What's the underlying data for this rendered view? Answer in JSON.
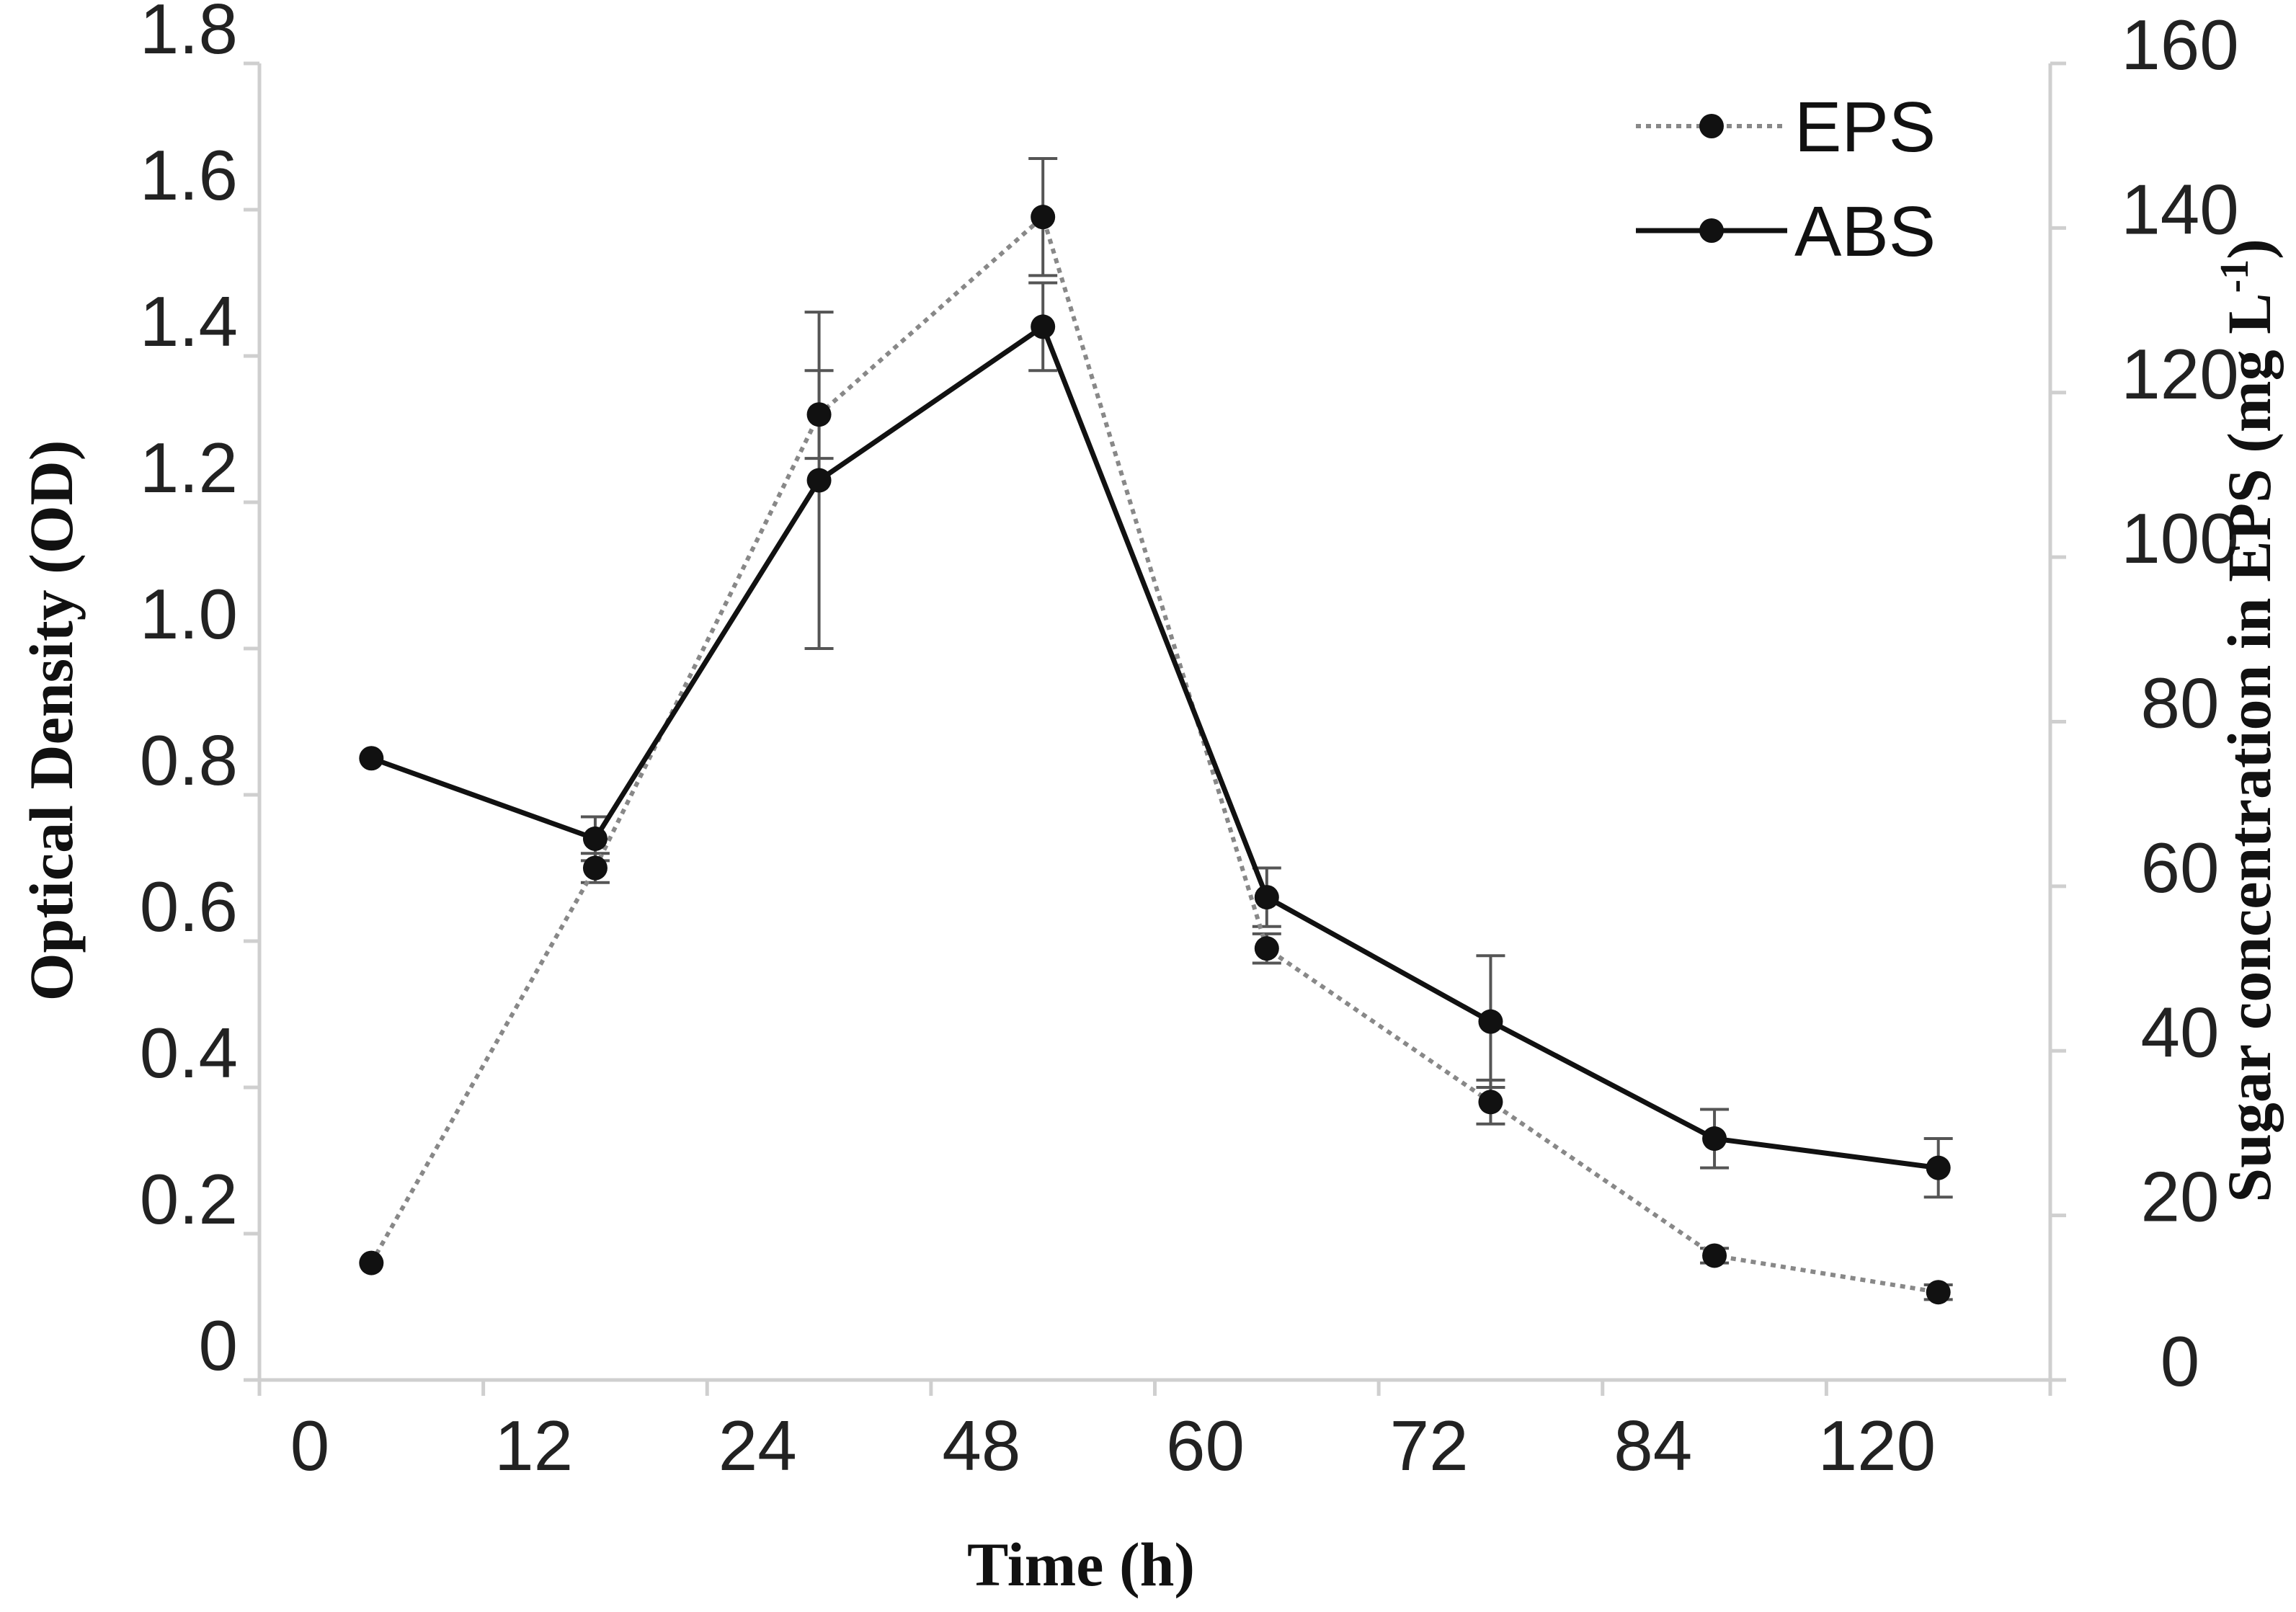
{
  "chart_data": {
    "type": "line",
    "categories": [
      "0",
      "12",
      "24",
      "48",
      "60",
      "72",
      "84",
      "120"
    ],
    "xlabel": "Time (h)",
    "ylabel_left": "Optical Density (OD)",
    "ylabel_right": "Sugar concentration in EPS (mg L-1)",
    "ylim_left": [
      0,
      1.8
    ],
    "ylim_right": [
      0,
      160
    ],
    "yticks_left": [
      "0",
      "0.2",
      "0.4",
      "0.6",
      "0.8",
      "1.0",
      "1.2",
      "1.4",
      "1.6",
      "1.8"
    ],
    "yticks_right": [
      "0",
      "20",
      "40",
      "60",
      "80",
      "100",
      "120",
      "140",
      "160"
    ],
    "legend_position": "top-right",
    "series": [
      {
        "name": "EPS",
        "style": "dotted",
        "x": [
          0.5,
          1.5,
          2.5,
          3.5,
          4.5,
          5.5,
          6.5,
          7.5
        ],
        "values": [
          0.16,
          0.7,
          1.32,
          1.59,
          0.59,
          0.38,
          0.17,
          0.12
        ],
        "errors": [
          0.0,
          0.02,
          0.06,
          0.08,
          0.02,
          0.03,
          0.01,
          0.01
        ]
      },
      {
        "name": "ABS",
        "style": "solid",
        "x": [
          0.5,
          1.5,
          2.5,
          3.5,
          4.5,
          5.5,
          6.5,
          7.5
        ],
        "values": [
          0.85,
          0.74,
          1.23,
          1.44,
          0.66,
          0.49,
          0.33,
          0.29
        ],
        "errors": [
          0.0,
          0.03,
          0.23,
          0.06,
          0.04,
          0.09,
          0.04,
          0.04
        ]
      }
    ],
    "colors": {
      "line": "#111111",
      "eps_line": "#888888",
      "axis": "#cfcfcf",
      "error": "#555555"
    }
  }
}
